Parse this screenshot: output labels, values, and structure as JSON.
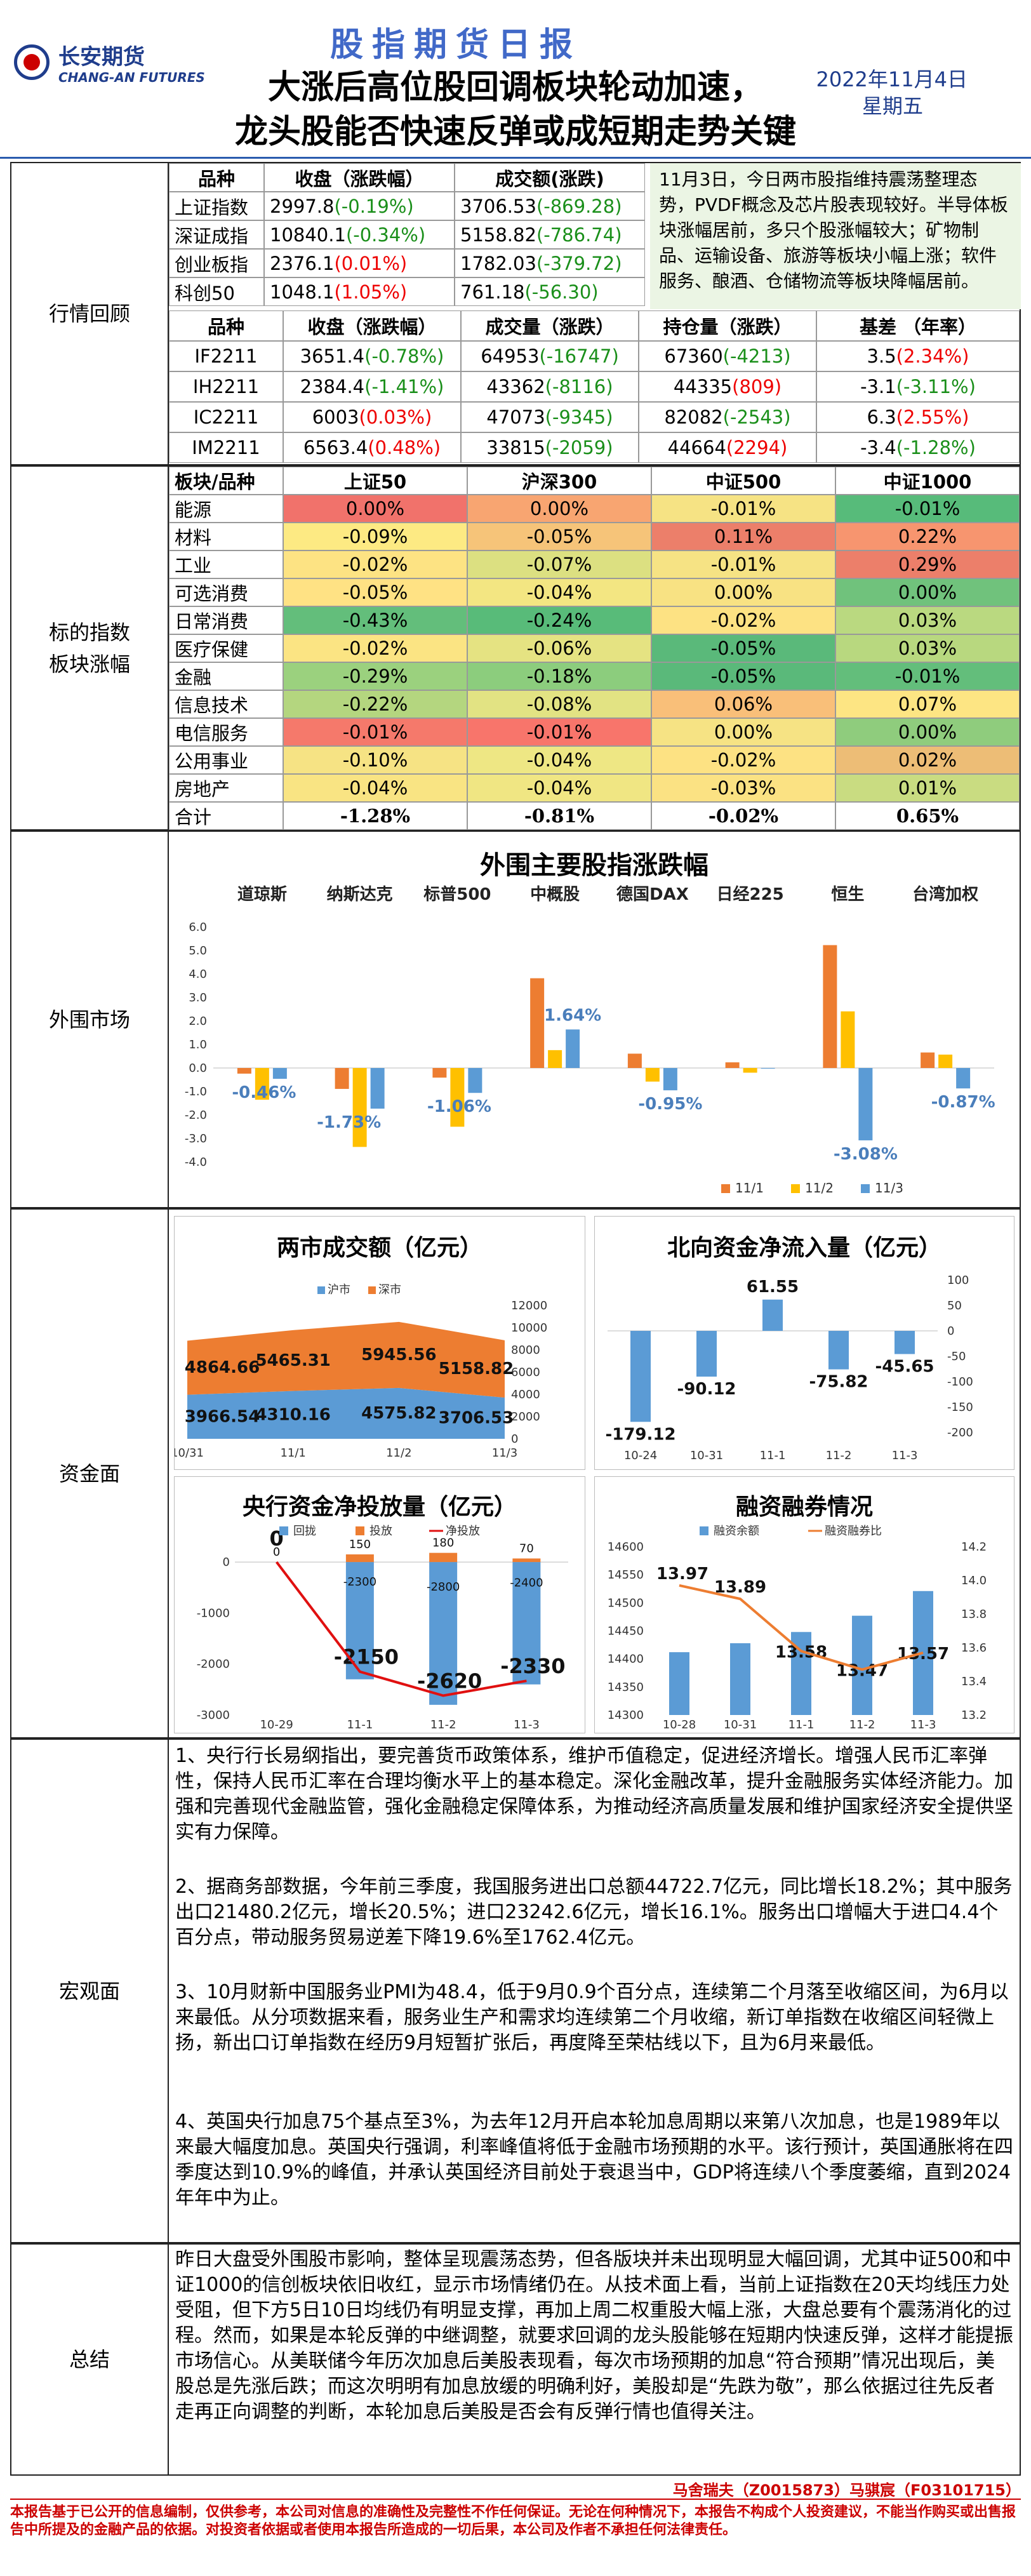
{
  "header": {
    "logo_cn": "长安期货",
    "logo_en": "CHANG-AN FUTURES",
    "report_title": "股指期货日报",
    "headline_1": "大涨后高位股回调板块轮动加速，",
    "headline_2": "龙头股能否快速反弹或成短期走势关键",
    "date": "2022年11月4日",
    "weekday": "星期五"
  },
  "sections": {
    "market_review": "行情回顾",
    "sector": "标的指数\n板块涨幅",
    "overseas": "外围市场",
    "funds": "资金面",
    "macro": "宏观面",
    "summary": "总结"
  },
  "index_table": {
    "headers": [
      "品种",
      "收盘（涨跌幅）",
      "成交额(涨跌)"
    ],
    "rows": [
      {
        "name": "上证指数",
        "close": "2997.8",
        "chg": "(-0.19%)",
        "chg_dir": "down",
        "amt": "3706.53",
        "amt_chg": "(-869.28)",
        "amt_dir": "down"
      },
      {
        "name": "深证成指",
        "close": "10840.1",
        "chg": "(-0.34%)",
        "chg_dir": "down",
        "amt": "5158.82",
        "amt_chg": "(-786.74)",
        "amt_dir": "down"
      },
      {
        "name": "创业板指",
        "close": "2376.1",
        "chg": "(0.01%)",
        "chg_dir": "up",
        "amt": "1782.03",
        "amt_chg": "(-379.72)",
        "amt_dir": "down"
      },
      {
        "name": "科创50",
        "close": "1048.1",
        "chg": "(1.05%)",
        "chg_dir": "up",
        "amt": "761.18",
        "amt_chg": "(-56.30)",
        "amt_dir": "down"
      }
    ]
  },
  "review_note": "11月3日，今日两市股指维持震荡整理态势，PVDF概念及芯片股表现较好。半导体板块涨幅居前，多只个股涨幅较大；矿物制品、运输设备、旅游等板块小幅上涨；软件服务、酿酒、仓储物流等板块降幅居前。",
  "futures_table": {
    "headers": [
      "品种",
      "收盘（涨跌幅）",
      "成交量（涨跌）",
      "持仓量（涨跌）",
      "基差 （年率）"
    ],
    "rows": [
      {
        "name": "IF2211",
        "close": "3651.4",
        "chg": "(-0.78%)",
        "chg_dir": "down",
        "vol": "64953",
        "vol_chg": "(-16747)",
        "vol_dir": "down",
        "oi": "67360",
        "oi_chg": "(-4213)",
        "oi_dir": "down",
        "basis": "3.5",
        "basis_rate": "(2.34%)",
        "basis_dir": "up"
      },
      {
        "name": "IH2211",
        "close": "2384.4",
        "chg": "(-1.41%)",
        "chg_dir": "down",
        "vol": "43362",
        "vol_chg": "(-8116)",
        "vol_dir": "down",
        "oi": "44335",
        "oi_chg": "(809)",
        "oi_dir": "up",
        "basis": "-3.1",
        "basis_rate": "(-3.11%)",
        "basis_dir": "down"
      },
      {
        "name": "IC2211",
        "close": "6003",
        "chg": "(0.03%)",
        "chg_dir": "up",
        "vol": "47073",
        "vol_chg": "(-9345)",
        "vol_dir": "down",
        "oi": "82082",
        "oi_chg": "(-2543)",
        "oi_dir": "down",
        "basis": "6.3",
        "basis_rate": "(2.55%)",
        "basis_dir": "up"
      },
      {
        "name": "IM2211",
        "close": "6563.4",
        "chg": "(0.48%)",
        "chg_dir": "up",
        "vol": "33815",
        "vol_chg": "(-2059)",
        "vol_dir": "down",
        "oi": "44664",
        "oi_chg": "(2294)",
        "oi_dir": "up",
        "basis": "-3.4",
        "basis_rate": "(-1.28%)",
        "basis_dir": "down"
      }
    ]
  },
  "sector_table": {
    "headers": [
      "板块/品种",
      "上证50",
      "沪深300",
      "中证500",
      "中证1000"
    ],
    "rows": [
      {
        "name": "能源",
        "v": [
          "0.00%",
          "0.00%",
          "-0.01%",
          "-0.01%"
        ]
      },
      {
        "name": "材料",
        "v": [
          "-0.09%",
          "-0.05%",
          "0.11%",
          "0.22%"
        ]
      },
      {
        "name": "工业",
        "v": [
          "-0.02%",
          "-0.07%",
          "-0.01%",
          "0.29%"
        ]
      },
      {
        "name": "可选消费",
        "v": [
          "-0.05%",
          "-0.04%",
          "0.00%",
          "0.00%"
        ]
      },
      {
        "name": "日常消费",
        "v": [
          "-0.43%",
          "-0.24%",
          "-0.02%",
          "0.03%"
        ]
      },
      {
        "name": "医疗保健",
        "v": [
          "-0.02%",
          "-0.06%",
          "-0.05%",
          "0.03%"
        ]
      },
      {
        "name": "金融",
        "v": [
          "-0.29%",
          "-0.18%",
          "-0.05%",
          "-0.01%"
        ]
      },
      {
        "name": "信息技术",
        "v": [
          "-0.22%",
          "-0.08%",
          "0.06%",
          "0.07%"
        ]
      },
      {
        "name": "电信服务",
        "v": [
          "-0.01%",
          "-0.01%",
          "0.00%",
          "0.00%"
        ]
      },
      {
        "name": "公用事业",
        "v": [
          "-0.10%",
          "-0.04%",
          "-0.02%",
          "0.02%"
        ]
      },
      {
        "name": "房地产",
        "v": [
          "-0.04%",
          "-0.04%",
          "-0.03%",
          "0.01%"
        ]
      }
    ],
    "total": {
      "name": "合计",
      "v": [
        "-1.28%",
        "-0.81%",
        "-0.02%",
        "0.65%"
      ]
    },
    "cell_colors": [
      [
        "#f1726b",
        "#f8a571",
        "#f6e384",
        "#57bb7a"
      ],
      [
        "#fdea83",
        "#f6c479",
        "#ec7f6a",
        "#f7956f"
      ],
      [
        "#fde383",
        "#dce081",
        "#f6e384",
        "#ec7f6a"
      ],
      [
        "#ffe284",
        "#f3e682",
        "#f8e283",
        "#70c27c"
      ],
      [
        "#63be7b",
        "#58bb79",
        "#fde283",
        "#bad980"
      ],
      [
        "#fbe483",
        "#e5e382",
        "#5ab97a",
        "#b8d87f"
      ],
      [
        "#9bd17e",
        "#8ccd7d",
        "#5ab97a",
        "#63be7b"
      ],
      [
        "#b4d67f",
        "#e2e383",
        "#f9bf79",
        "#fde583"
      ],
      [
        "#f5796b",
        "#f8756b",
        "#f6e384",
        "#8fcc7d"
      ],
      [
        "#f6e384",
        "#eee784",
        "#fde283",
        "#edbd76"
      ],
      [
        "#f9e483",
        "#f0e683",
        "#fbe283",
        "#c9dc81"
      ]
    ]
  },
  "overseas_chart": {
    "title": "外围主要股指涨跌幅",
    "labels": [
      "道琼斯",
      "纳斯达克",
      "标普500",
      "中概股",
      "德国DAX",
      "日经225",
      "恒生",
      "台湾加权"
    ],
    "legend": [
      "11/1",
      "11/2",
      "11/3"
    ],
    "colors": [
      "#ed7d31",
      "#ffc000",
      "#5b9bd5"
    ],
    "yticks": [
      "6.0",
      "5.0",
      "4.0",
      "3.0",
      "2.0",
      "1.0",
      "0.0",
      "-1.0",
      "-2.0",
      "-3.0",
      "-4.0"
    ],
    "series": [
      [
        -0.24,
        -0.89,
        -0.41,
        3.82,
        0.61,
        0.24,
        5.23,
        0.66
      ],
      [
        -1.35,
        -3.36,
        -2.5,
        0.76,
        -0.58,
        -0.2,
        2.41,
        0.57
      ],
      [
        -0.46,
        -1.73,
        -1.06,
        1.64,
        -0.95,
        0,
        -3.08,
        -0.87
      ]
    ],
    "value_labels": [
      "-0.46%",
      "-1.73%",
      "-1.06%",
      "1.64%",
      "-0.95%",
      "-3.08%",
      "-0.87%"
    ]
  },
  "turnover_chart": {
    "title": "两市成交额（亿元）",
    "legend": [
      "沪市",
      "深市"
    ],
    "dates": [
      "10/31",
      "11/1",
      "11/2",
      "11/3"
    ],
    "sh": [
      3966.54,
      4310.16,
      4575.82,
      3706.53
    ],
    "sz": [
      4864.66,
      5465.31,
      5945.56,
      5158.82
    ],
    "sh_labels": [
      "3966.54",
      "4310.16",
      "4575.82",
      "3706.53"
    ],
    "sz_labels": [
      "4864.66",
      "5465.31",
      "5945.56",
      "5158.82"
    ],
    "yticks": [
      "12000",
      "10000",
      "8000",
      "6000",
      "4000",
      "2000",
      "0"
    ]
  },
  "northbound_chart": {
    "title": "北向资金净流入量（亿元）",
    "dates": [
      "10-24",
      "10-31",
      "11-1",
      "11-2",
      "11-3"
    ],
    "values": [
      -179.12,
      -90.12,
      61.55,
      -75.82,
      -45.65
    ],
    "labels": [
      "-179.12",
      "-90.12",
      "61.55",
      "-75.82",
      "-45.65"
    ],
    "yticks": [
      "100",
      "50",
      "0",
      "-50",
      "-100",
      "-150",
      "-200"
    ]
  },
  "pboc_chart": {
    "title": "央行资金净投放量（亿元）",
    "legend": [
      "回拢",
      "投放",
      "净投放"
    ],
    "dates": [
      "10-29",
      "11-1",
      "11-2",
      "11-3"
    ],
    "withdraw": [
      0,
      -2300,
      -2800,
      -2400
    ],
    "inject": [
      0,
      150,
      180,
      70
    ],
    "net": [
      0,
      -2150,
      -2620,
      -2330
    ],
    "top_labels": [
      "0",
      "150",
      "180",
      "70"
    ],
    "bar_labels": [
      "-2300",
      "-2800",
      "-2400"
    ],
    "net_labels": [
      "0",
      "-2150",
      "-2620",
      "-2330"
    ],
    "yticks": [
      "0",
      "-1000",
      "-2000",
      "-3000"
    ]
  },
  "margin_chart": {
    "title": "融资融券情况",
    "legend": [
      "融资余额",
      "融资融券比"
    ],
    "dates": [
      "10-28",
      "10-31",
      "11-1",
      "11-2",
      "11-3"
    ],
    "balance": [
      14412,
      14428,
      14448,
      14477,
      14521
    ],
    "ratio": [
      13.97,
      13.89,
      13.58,
      13.47,
      13.57
    ],
    "ratio_labels": [
      "13.97",
      "13.89",
      "13.58",
      "13.47",
      "13.57"
    ],
    "yticks_left": [
      "14600",
      "14550",
      "14500",
      "14450",
      "14400",
      "14350",
      "14300"
    ],
    "yticks_right": [
      "14.2",
      "14.0",
      "13.8",
      "13.6",
      "13.4",
      "13.2"
    ]
  },
  "macro": [
    "1、央行行长易纲指出，要完善货币政策体系，维护币值稳定，促进经济增长。增强人民币汇率弹性，保持人民币汇率在合理均衡水平上的基本稳定。深化金融改革，提升金融服务实体经济能力。加强和完善现代金融监管，强化金融稳定保障体系，为推动经济高质量发展和维护国家经济安全提供坚实有力保障。",
    "2、据商务部数据，今年前三季度，我国服务进出口总额44722.7亿元，同比增长18.2%；其中服务出口21480.2亿元，增长20.5%；进口23242.6亿元，增长16.1%。服务出口增幅大于进口4.4个百分点，带动服务贸易逆差下降19.6%至1762.4亿元。",
    "3、10月财新中国服务业PMI为48.4，低于9月0.9个百分点，连续第二个月落至收缩区间，为6月以来最低。从分项数据来看，服务业生产和需求均连续第二个月收缩，新订单指数在收缩区间轻微上扬，新出口订单指数在经历9月短暂扩张后，再度降至荣枯线以下，且为6月来最低。",
    "4、英国央行加息75个基点至3%，为去年12月开启本轮加息周期以来第八次加息，也是1989年以来最大幅度加息。英国央行强调，利率峰值将低于金融市场预期的水平。该行预计，英国通胀将在四季度达到10.9%的峰值，并承认英国经济目前处于衰退当中，GDP将连续八个季度萎缩，直到2024年年中为止。"
  ],
  "summary": "昨日大盘受外围股市影响，整体呈现震荡态势，但各版块并未出现明显大幅回调，尤其中证500和中证1000的信创板块依旧收红，显示市场情绪仍在。从技术面上看，当前上证指数在20天均线压力处受阻，但下方5日10日均线仍有明显支撑，再加上周二权重股大幅上涨，大盘总要有个震荡消化的过程。然而，如果是本轮反弹的中继调整，就要求回调的龙头股能够在短期内快速反弹，这样才能提振市场信心。从美联储今年历次加息后美股表现看，每次市场预期的加息“符合预期”情况出现后，美股总是先涨后跌；而这次明明有加息放缓的明确利好，美股却是“先跌为敬”，那么依据过往先反者走再正向调整的判断，本轮加息后美股是否会有反弹行情也值得关注。",
  "analyst": "马舍瑞夫（Z0015873）马骐宸（F03101715）",
  "disclaimer": "本报告基于已公开的信息编制，仅供参考，本公司对信息的准确性及完整性不作任何保证。无论在何种情况下，本报告不构成个人投资建议，不能当作购买或出售报告中所提及的金融产品的依据。对投资者依据或者使用本报告所造成的一切后果，本公司及作者不承担任何法律责任。"
}
